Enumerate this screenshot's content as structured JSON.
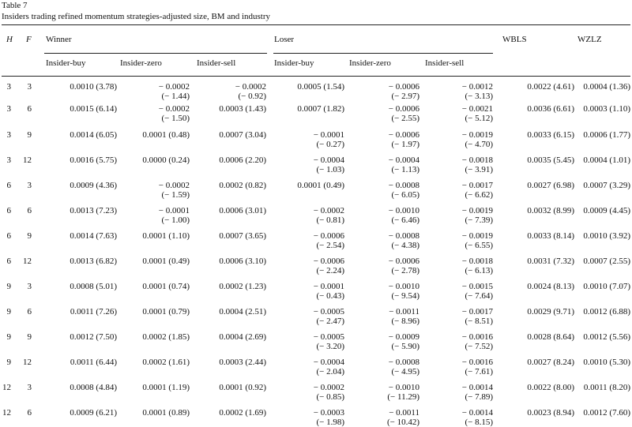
{
  "table": {
    "label": "Table 7",
    "title": "Insiders trading refined momentum strategies-adjusted size, BM and industry",
    "headers": {
      "H": "H",
      "F": "F",
      "winner": "Winner",
      "loser": "Loser",
      "wbls": "WBLS",
      "wzlz": "WZLZ",
      "sub": [
        "Insider-buy",
        "Insider-zero",
        "Insider-sell"
      ]
    },
    "rows": [
      {
        "h": "3",
        "f": "3",
        "wb": [
          "0.0010 (3.78)",
          ""
        ],
        "wz": [
          "− 0.0002",
          "(− 1.44)"
        ],
        "ws": [
          "− 0.0002",
          "(− 0.92)"
        ],
        "lb": [
          "0.0005 (1.54)",
          ""
        ],
        "lz": [
          "− 0.0006",
          "(− 2.97)"
        ],
        "ls": [
          "− 0.0012",
          "(− 3.13)"
        ],
        "wbls": "0.0022 (4.61)",
        "wzlz": "0.0004 (1.36)"
      },
      {
        "h": "3",
        "f": "6",
        "wb": [
          "0.0015 (6.14)",
          ""
        ],
        "wz": [
          "− 0.0002",
          "(− 1.50)"
        ],
        "ws": [
          "0.0003 (1.43)",
          ""
        ],
        "lb": [
          "0.0007 (1.82)",
          ""
        ],
        "lz": [
          "− 0.0006",
          "(− 2.55)"
        ],
        "ls": [
          "− 0.0021",
          "(− 5.12)"
        ],
        "wbls": "0.0036 (6.61)",
        "wzlz": "0.0003 (1.10)"
      },
      {
        "h": "3",
        "f": "9",
        "wb": [
          "0.0014 (6.05)",
          ""
        ],
        "wz": [
          "0.0001 (0.48)",
          ""
        ],
        "ws": [
          "0.0007 (3.04)",
          ""
        ],
        "lb": [
          "− 0.0001",
          "(− 0.27)"
        ],
        "lz": [
          "− 0.0006",
          "(− 1.97)"
        ],
        "ls": [
          "− 0.0019",
          "(− 4.70)"
        ],
        "wbls": "0.0033 (6.15)",
        "wzlz": "0.0006 (1.77)"
      },
      {
        "h": "3",
        "f": "12",
        "wb": [
          "0.0016 (5.75)",
          ""
        ],
        "wz": [
          "0.0000 (0.24)",
          ""
        ],
        "ws": [
          "0.0006 (2.20)",
          ""
        ],
        "lb": [
          "− 0.0004",
          "(− 1.03)"
        ],
        "lz": [
          "− 0.0004",
          "(− 1.13)"
        ],
        "ls": [
          "− 0.0018",
          "(− 3.91)"
        ],
        "wbls": "0.0035 (5.45)",
        "wzlz": "0.0004 (1.01)"
      },
      {
        "h": "6",
        "f": "3",
        "wb": [
          "0.0009 (4.36)",
          ""
        ],
        "wz": [
          "− 0.0002",
          "(− 1.59)"
        ],
        "ws": [
          "0.0002 (0.82)",
          ""
        ],
        "lb": [
          "0.0001 (0.49)",
          ""
        ],
        "lz": [
          "− 0.0008",
          "(− 6.05)"
        ],
        "ls": [
          "− 0.0017",
          "(− 6.62)"
        ],
        "wbls": "0.0027 (6.98)",
        "wzlz": "0.0007 (3.29)"
      },
      {
        "h": "6",
        "f": "6",
        "wb": [
          "0.0013 (7.23)",
          ""
        ],
        "wz": [
          "− 0.0001",
          "(− 1.00)"
        ],
        "ws": [
          "0.0006 (3.01)",
          ""
        ],
        "lb": [
          "− 0.0002",
          "(− 0.81)"
        ],
        "lz": [
          "− 0.0010",
          "(− 6.46)"
        ],
        "ls": [
          "− 0.0019",
          "(− 7.39)"
        ],
        "wbls": "0.0032 (8.99)",
        "wzlz": "0.0009 (4.45)"
      },
      {
        "h": "6",
        "f": "9",
        "wb": [
          "0.0014 (7.63)",
          ""
        ],
        "wz": [
          "0.0001 (1.10)",
          ""
        ],
        "ws": [
          "0.0007 (3.65)",
          ""
        ],
        "lb": [
          "− 0.0006",
          "(− 2.54)"
        ],
        "lz": [
          "− 0.0008",
          "(− 4.38)"
        ],
        "ls": [
          "− 0.0019",
          "(− 6.55)"
        ],
        "wbls": "0.0033 (8.14)",
        "wzlz": "0.0010 (3.92)"
      },
      {
        "h": "6",
        "f": "12",
        "wb": [
          "0.0013 (6.82)",
          ""
        ],
        "wz": [
          "0.0001 (0.49)",
          ""
        ],
        "ws": [
          "0.0006 (3.10)",
          ""
        ],
        "lb": [
          "− 0.0006",
          "(− 2.24)"
        ],
        "lz": [
          "− 0.0006",
          "(− 2.78)"
        ],
        "ls": [
          "− 0.0018",
          "(− 6.13)"
        ],
        "wbls": "0.0031 (7.32)",
        "wzlz": "0.0007 (2.55)"
      },
      {
        "h": "9",
        "f": "3",
        "wb": [
          "0.0008 (5.01)",
          ""
        ],
        "wz": [
          "0.0001 (0.74)",
          ""
        ],
        "ws": [
          "0.0002 (1.23)",
          ""
        ],
        "lb": [
          "− 0.0001",
          "(− 0.43)"
        ],
        "lz": [
          "− 0.0010",
          "(− 9.54)"
        ],
        "ls": [
          "− 0.0015",
          "(− 7.64)"
        ],
        "wbls": "0.0024 (8.13)",
        "wzlz": "0.0010 (7.07)"
      },
      {
        "h": "9",
        "f": "6",
        "wb": [
          "0.0011 (7.26)",
          ""
        ],
        "wz": [
          "0.0001 (0.79)",
          ""
        ],
        "ws": [
          "0.0004 (2.51)",
          ""
        ],
        "lb": [
          "− 0.0005",
          "(− 2.47)"
        ],
        "lz": [
          "− 0.0011",
          "(− 8.96)"
        ],
        "ls": [
          "− 0.0017",
          "(− 8.51)"
        ],
        "wbls": "0.0029 (9.71)",
        "wzlz": "0.0012 (6.88)"
      },
      {
        "h": "9",
        "f": "9",
        "wb": [
          "0.0012 (7.50)",
          ""
        ],
        "wz": [
          "0.0002 (1.85)",
          ""
        ],
        "ws": [
          "0.0004 (2.69)",
          ""
        ],
        "lb": [
          "− 0.0005",
          "(− 3.20)"
        ],
        "lz": [
          "− 0.0009",
          "(− 5.90)"
        ],
        "ls": [
          "− 0.0016",
          "(− 7.52)"
        ],
        "wbls": "0.0028 (8.64)",
        "wzlz": "0.0012 (5.56)"
      },
      {
        "h": "9",
        "f": "12",
        "wb": [
          "0.0011 (6.44)",
          ""
        ],
        "wz": [
          "0.0002 (1.61)",
          ""
        ],
        "ws": [
          "0.0003 (2.44)",
          ""
        ],
        "lb": [
          "− 0.0004",
          "(− 2.04)"
        ],
        "lz": [
          "− 0.0008",
          "(− 4.95)"
        ],
        "ls": [
          "− 0.0016",
          "(− 7.61)"
        ],
        "wbls": "0.0027 (8.24)",
        "wzlz": "0.0010 (5.30)"
      },
      {
        "h": "12",
        "f": "3",
        "wb": [
          "0.0008 (4.84)",
          ""
        ],
        "wz": [
          "0.0001 (1.19)",
          ""
        ],
        "ws": [
          "0.0001 (0.92)",
          ""
        ],
        "lb": [
          "− 0.0002",
          "(− 0.85)"
        ],
        "lz": [
          "− 0.0010",
          "(− 11.29)"
        ],
        "ls": [
          "− 0.0014",
          "(− 7.89)"
        ],
        "wbls": "0.0022 (8.00)",
        "wzlz": "0.0011 (8.20)"
      },
      {
        "h": "12",
        "f": "6",
        "wb": [
          "0.0009 (6.21)",
          ""
        ],
        "wz": [
          "0.0001 (0.89)",
          ""
        ],
        "ws": [
          "0.0002 (1.69)",
          ""
        ],
        "lb": [
          "− 0.0003",
          "(− 1.98)"
        ],
        "lz": [
          "− 0.0011",
          "(− 10.42)"
        ],
        "ls": [
          "− 0.0014",
          "(− 8.15)"
        ],
        "wbls": "0.0023 (8.94)",
        "wzlz": "0.0012 (7.60)"
      }
    ]
  }
}
